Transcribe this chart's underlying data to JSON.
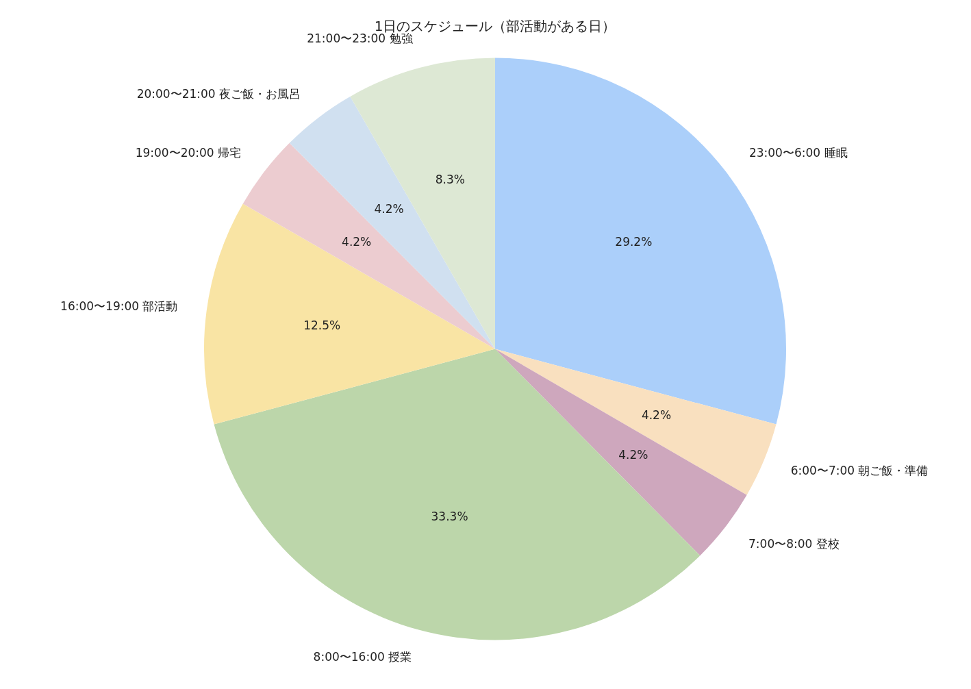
{
  "chart_data": {
    "type": "pie",
    "title": "1日のスケジュール（部活動がある日）",
    "categories": [
      "23:00〜6:00 睡眠",
      "6:00〜7:00 朝ご飯・準備",
      "7:00〜8:00 登校",
      "8:00〜16:00 授業",
      "16:00〜19:00 部活動",
      "19:00〜20:00 帰宅",
      "20:00〜21:00 夜ご飯・お風呂",
      "21:00〜23:00 勉強"
    ],
    "values": [
      29.2,
      4.2,
      4.2,
      33.3,
      12.5,
      4.2,
      4.2,
      8.3
    ],
    "value_labels": [
      "29.2%",
      "4.2%",
      "4.2%",
      "33.3%",
      "12.5%",
      "4.2%",
      "4.2%",
      "8.3%"
    ],
    "colors": [
      "#abcffa",
      "#f9e0bf",
      "#cea7bd",
      "#bcd6aa",
      "#f9e4a4",
      "#ecccd0",
      "#d0e0f0",
      "#dde8d4"
    ],
    "legend": false
  }
}
